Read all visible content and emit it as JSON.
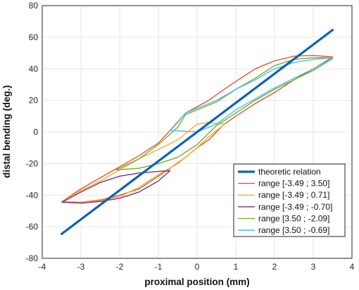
{
  "chart_data": {
    "type": "line",
    "title": "",
    "xlabel": "proximal position (mm)",
    "ylabel": "distal bending (deg.)",
    "xlim": [
      -4,
      4
    ],
    "ylim": [
      -80,
      80
    ],
    "xticks": [
      -4,
      -3,
      -2,
      -1,
      0,
      1,
      2,
      3,
      4
    ],
    "yticks": [
      -80,
      -60,
      -40,
      -20,
      0,
      20,
      40,
      60,
      80
    ],
    "grid": true,
    "legend_position": "bottom-right",
    "series": [
      {
        "name": "theoretic relation",
        "color": "#0b63b4",
        "width": 3.2,
        "x": [
          -3.5,
          3.5
        ],
        "y": [
          -64.6,
          64.6
        ]
      },
      {
        "name": "range [-3.49 ; 3.50]",
        "color": "#e2552c",
        "width": 1.4,
        "x": [
          -3.49,
          -3.0,
          -2.5,
          -2.0,
          -1.5,
          -1.0,
          -0.7,
          -0.3,
          0.0,
          0.3,
          0.7,
          1.0,
          1.5,
          2.0,
          2.5,
          3.0,
          3.5,
          3.0,
          2.5,
          2.0,
          1.5,
          1.0,
          0.7,
          0.3,
          0.0,
          -0.3,
          -0.7,
          -1.0,
          -1.5,
          -2.0,
          -2.5,
          -3.0,
          -3.49
        ],
        "y": [
          -44,
          -36,
          -29,
          -22,
          -15,
          -7,
          1,
          12,
          16,
          20,
          27,
          32,
          40,
          45,
          48,
          48.5,
          47.5,
          40,
          33,
          25,
          18,
          10,
          5,
          -5,
          -10,
          -16,
          -23,
          -28,
          -36,
          -40,
          -43,
          -44.5,
          -44
        ]
      },
      {
        "name": "range [-3.49 ; 0.71]",
        "color": "#efb126",
        "width": 1.4,
        "x": [
          -3.49,
          -3.0,
          -2.5,
          -2.0,
          -1.5,
          -1.0,
          -0.5,
          0.0,
          0.3,
          0.71,
          0.3,
          0.0,
          -0.5,
          -1.0,
          -1.5,
          -2.0,
          -2.5,
          -3.0,
          -3.49
        ],
        "y": [
          -44,
          -37,
          -31,
          -24,
          -17,
          -11,
          -5,
          5,
          6,
          5,
          -3,
          -10,
          -20,
          -27,
          -35,
          -41,
          -43.5,
          -44.5,
          -44
        ]
      },
      {
        "name": "range [-3.49 ; -0.70]",
        "color": "#7e2e8e",
        "width": 1.4,
        "x": [
          -3.49,
          -3.0,
          -2.5,
          -2.0,
          -1.5,
          -1.0,
          -0.7,
          -1.0,
          -1.5,
          -2.0,
          -2.5,
          -3.0,
          -3.49
        ],
        "y": [
          -44.5,
          -38,
          -32,
          -28,
          -26,
          -25,
          -24.5,
          -31,
          -38,
          -42,
          -44,
          -45,
          -44.5
        ]
      },
      {
        "name": "range [3.50 ; -2.09]",
        "color": "#77ac30",
        "width": 1.4,
        "x": [
          3.5,
          3.0,
          2.5,
          2.0,
          1.5,
          1.0,
          0.5,
          0.0,
          -0.5,
          -1.0,
          -1.5,
          -2.09,
          -1.5,
          -1.0,
          -0.5,
          -0.3,
          0.0,
          0.5,
          1.0,
          1.5,
          2.0,
          2.5,
          3.0,
          3.5
        ],
        "y": [
          46.5,
          39,
          33,
          27,
          20,
          12,
          4,
          -8,
          -16,
          -20,
          -23,
          -24,
          -17,
          -8,
          3,
          11,
          14,
          19,
          27,
          34,
          42,
          46,
          47,
          47
        ]
      },
      {
        "name": "range [3.50 ; -0.69]",
        "color": "#4dbeee",
        "width": 1.4,
        "x": [
          3.5,
          3.0,
          2.5,
          2.0,
          1.5,
          1.0,
          0.5,
          0.0,
          -0.3,
          -0.69,
          -0.5,
          -0.3,
          0.0,
          0.5,
          1.0,
          1.5,
          2.0,
          2.5,
          3.0,
          3.5
        ],
        "y": [
          47,
          40,
          34,
          28,
          21,
          14,
          5,
          0,
          0.5,
          1,
          6,
          12,
          15,
          20,
          27,
          33,
          40,
          44,
          46,
          47
        ]
      }
    ]
  }
}
